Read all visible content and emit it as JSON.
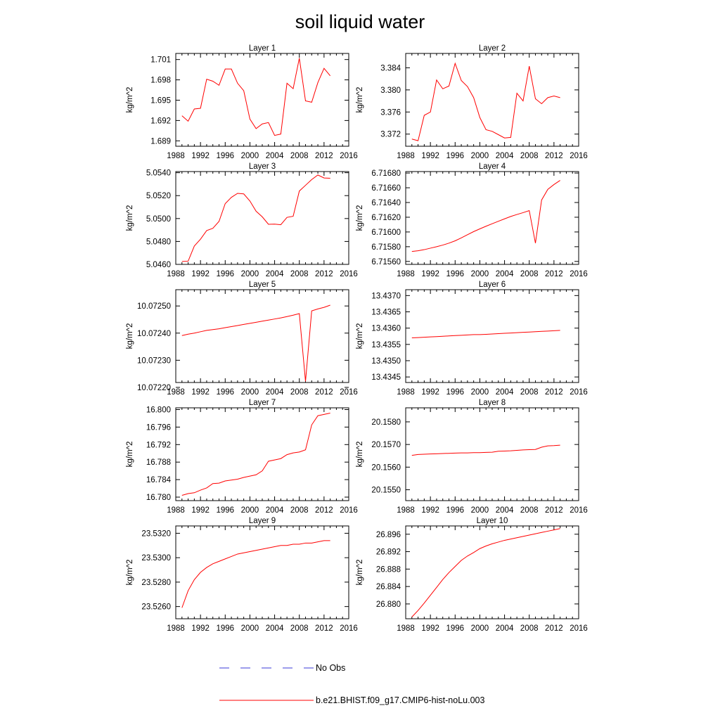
{
  "chart_data": {
    "title": "soil liquid water",
    "type": "line",
    "series_colors": {
      "obs": "#3a3ad8",
      "model": "#ff0000"
    },
    "legend": {
      "placement": "bottom",
      "entries": [
        {
          "label": "No Obs",
          "style": "dashed",
          "color": "#3a3ad8"
        },
        {
          "label": "b.e21.BHIST.f09_g17.CMIP6-hist-noLu.003",
          "style": "solid",
          "color": "#ff0000"
        }
      ]
    },
    "x_ticks": [
      "1988",
      "1992",
      "1996",
      "2000",
      "2004",
      "2008",
      "2012",
      "2016"
    ],
    "xlim": [
      1988,
      2016
    ],
    "x": [
      1989,
      1990,
      1991,
      1992,
      1993,
      1994,
      1995,
      1996,
      1997,
      1998,
      1999,
      2000,
      2001,
      2002,
      2003,
      2004,
      2005,
      2006,
      2007,
      2008,
      2009,
      2010,
      2011,
      2012,
      2013
    ],
    "panels": [
      {
        "title": "Layer 1",
        "ylabel": "kg/m^2",
        "ylim": [
          1.6882,
          1.7019
        ],
        "yticks": [
          "1.689",
          "1.692",
          "1.695",
          "1.698",
          "1.701"
        ],
        "values": [
          1.6927,
          1.6919,
          1.6937,
          1.6938,
          1.6981,
          1.6978,
          1.6972,
          1.6996,
          1.6996,
          1.6975,
          1.6964,
          1.6922,
          1.6908,
          1.6915,
          1.6917,
          1.6898,
          1.69,
          1.6975,
          1.6967,
          1.7012,
          1.6949,
          1.6947,
          1.6976,
          1.6997,
          1.6986
        ]
      },
      {
        "title": "Layer 2",
        "ylabel": "kg/m^2",
        "ylim": [
          3.3698,
          3.3866
        ],
        "yticks": [
          "3.372",
          "3.376",
          "3.380",
          "3.384"
        ],
        "values": [
          3.3711,
          3.3708,
          3.3754,
          3.376,
          3.3818,
          3.3802,
          3.3807,
          3.3848,
          3.3817,
          3.3806,
          3.3786,
          3.375,
          3.3728,
          3.3725,
          3.3719,
          3.3713,
          3.3714,
          3.3794,
          3.378,
          3.3843,
          3.3784,
          3.3775,
          3.3786,
          3.3789,
          3.3786
        ]
      },
      {
        "title": "Layer 3",
        "ylabel": "kg/m^2",
        "ylim": [
          5.046,
          5.0541
        ],
        "yticks": [
          "5.0460",
          "5.0480",
          "5.0500",
          "5.0520",
          "5.0540"
        ],
        "values": [
          5.04625,
          5.04628,
          5.0476,
          5.0482,
          5.04895,
          5.04915,
          5.04975,
          5.0513,
          5.05185,
          5.0522,
          5.05215,
          5.05153,
          5.05064,
          5.05015,
          5.0495,
          5.04951,
          5.04946,
          5.0501,
          5.0502,
          5.0524,
          5.0529,
          5.0534,
          5.0538,
          5.05354,
          5.05352
        ]
      },
      {
        "title": "Layer 4",
        "ylabel": "kg/m^2",
        "ylim": [
          6.71556,
          6.71682
        ],
        "yticks": [
          "6.71560",
          "6.71580",
          "6.71600",
          "6.71620",
          "6.71640",
          "6.71660",
          "6.71680"
        ],
        "values": [
          6.715735,
          6.715745,
          6.71576,
          6.71578,
          6.7158,
          6.715822,
          6.715848,
          6.71588,
          6.71592,
          6.715963,
          6.716005,
          6.716042,
          6.716078,
          6.716112,
          6.716145,
          6.716178,
          6.71621,
          6.716237,
          6.716262,
          6.71629,
          6.715848,
          6.716434,
          6.716578,
          6.716644,
          6.7167
        ]
      },
      {
        "title": "Layer 5",
        "ylabel": "kg/m^2",
        "ylim": [
          10.072218,
          10.07256
        ],
        "yticks": [
          "10.07220",
          "10.07230",
          "10.07240",
          "10.07250"
        ],
        "values": [
          10.072391,
          10.072396,
          10.0724,
          10.072405,
          10.07241,
          10.072413,
          10.072416,
          10.07242,
          10.072424,
          10.072428,
          10.072432,
          10.072436,
          10.07244,
          10.072444,
          10.072448,
          10.072452,
          10.072456,
          10.072461,
          10.072466,
          10.072472,
          10.072222,
          10.072482,
          10.072489,
          10.072495,
          10.072503
        ]
      },
      {
        "title": "Layer 6",
        "ylabel": "kg/m^2",
        "ylim": [
          13.43433,
          13.43718
        ],
        "yticks": [
          "13.4345",
          "13.4350",
          "13.4355",
          "13.4360",
          "13.4365",
          "13.4370"
        ],
        "values": [
          13.4357,
          13.43571,
          13.43572,
          13.43573,
          13.43574,
          13.43575,
          13.43576,
          13.43577,
          13.43578,
          13.43579,
          13.4358,
          13.4358,
          13.43581,
          13.43582,
          13.43583,
          13.43584,
          13.43585,
          13.43586,
          13.43587,
          13.43588,
          13.43589,
          13.4359,
          13.43591,
          13.43592,
          13.43593
        ]
      },
      {
        "title": "Layer 7",
        "ylabel": "kg/m^2",
        "ylim": [
          16.7792,
          16.8004
        ],
        "yticks": [
          "16.780",
          "16.784",
          "16.788",
          "16.792",
          "16.796",
          "16.800"
        ],
        "values": [
          16.7804,
          16.7808,
          16.781,
          16.7816,
          16.7821,
          16.7831,
          16.7832,
          16.7837,
          16.7839,
          16.7841,
          16.7845,
          16.7848,
          16.7851,
          16.786,
          16.7882,
          16.7885,
          16.7888,
          16.7897,
          16.7901,
          16.7903,
          16.7908,
          16.7965,
          16.7986,
          16.7989,
          16.7992
        ]
      },
      {
        "title": "Layer 8",
        "ylabel": "kg/m^2",
        "ylim": [
          20.15452,
          20.15862
        ],
        "yticks": [
          "20.1550",
          "20.1560",
          "20.1570",
          "20.1580"
        ],
        "values": [
          20.15652,
          20.15656,
          20.15657,
          20.15658,
          20.15659,
          20.1566,
          20.15661,
          20.15662,
          20.15663,
          20.15663,
          20.15664,
          20.15664,
          20.15665,
          20.15666,
          20.1567,
          20.15671,
          20.15672,
          20.15674,
          20.15676,
          20.15677,
          20.15678,
          20.15688,
          20.15694,
          20.15695,
          20.15697
        ]
      },
      {
        "title": "Layer 9",
        "ylabel": "kg/m^2",
        "ylim": [
          23.525,
          23.5326
        ],
        "yticks": [
          "23.5260",
          "23.5280",
          "23.5300",
          "23.5320"
        ],
        "values": [
          23.5259,
          23.5273,
          23.5282,
          23.5288,
          23.5292,
          23.5295,
          23.5297,
          23.5299,
          23.5301,
          23.5303,
          23.5304,
          23.5305,
          23.5306,
          23.5307,
          23.5308,
          23.5309,
          23.531,
          23.531,
          23.5311,
          23.5311,
          23.5312,
          23.5312,
          23.5313,
          23.5314,
          23.5314
        ]
      },
      {
        "title": "Layer 10",
        "ylabel": "kg/m^2",
        "ylim": [
          26.8766,
          26.8979
        ],
        "yticks": [
          "26.880",
          "26.884",
          "26.888",
          "26.892",
          "26.896"
        ],
        "values": [
          26.877,
          26.8785,
          26.8802,
          26.882,
          26.8838,
          26.8856,
          26.8872,
          26.8886,
          26.89,
          26.891,
          26.8918,
          26.8927,
          26.8933,
          26.8938,
          26.8942,
          26.8946,
          26.8949,
          26.8952,
          26.8955,
          26.8958,
          26.8961,
          26.8964,
          26.8967,
          26.897,
          26.8973
        ]
      }
    ]
  }
}
